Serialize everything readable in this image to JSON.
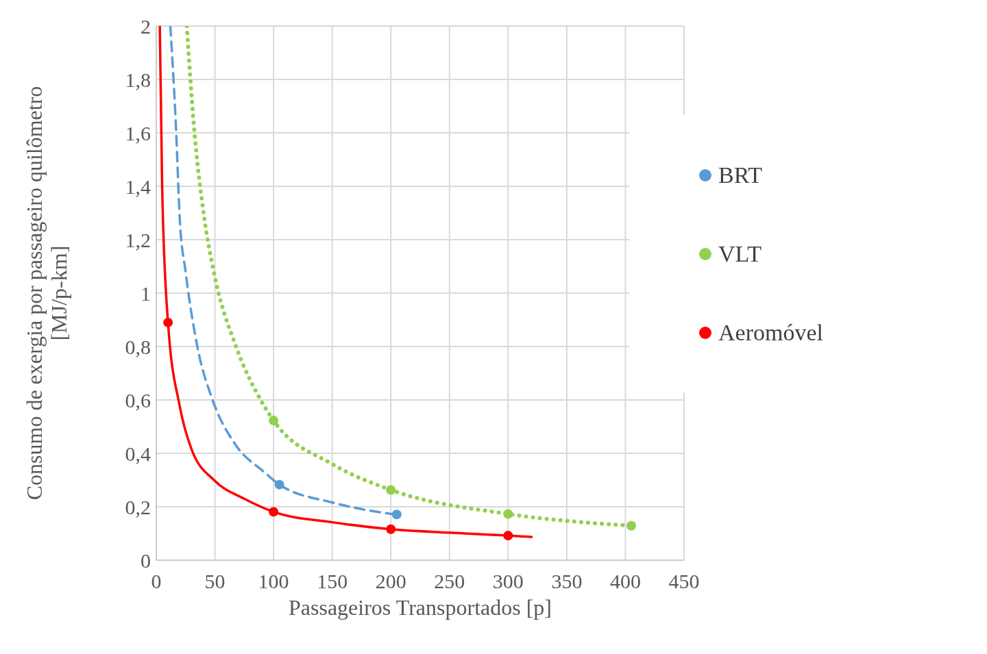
{
  "chart_data": {
    "type": "scatter",
    "xlabel": "Passageiros Transportados [p]",
    "ylabel": "Consumo de exergia por passageiro quilômetro\n[MJ/p-km]",
    "xlim": [
      0,
      450
    ],
    "xticks": [
      0,
      50,
      100,
      150,
      200,
      250,
      300,
      350,
      400,
      450
    ],
    "ylim": [
      0,
      2
    ],
    "yticks": [
      0,
      {
        "value": 0.2,
        "label": "0,2"
      },
      {
        "value": 0.4,
        "label": "0,4"
      },
      {
        "value": 0.6,
        "label": "0,6"
      },
      {
        "value": 0.8,
        "label": "0,8"
      },
      1,
      {
        "value": 1.2,
        "label": "1,2"
      },
      {
        "value": 1.4,
        "label": "1,4"
      },
      {
        "value": 1.6,
        "label": "1,6"
      },
      {
        "value": 1.8,
        "label": "1,8"
      },
      2
    ],
    "grid": true,
    "legend": "top right",
    "marker": "circle",
    "series": [
      {
        "type": "line",
        "color": "#5b9bd5",
        "line_style": "dashed",
        "marker": "none",
        "x": [
          12,
          17,
          20,
          25,
          35,
          48,
          67,
          92,
          105,
          150,
          205
        ],
        "values": [
          2,
          1.6,
          1.28,
          1.08,
          0.8,
          0.6,
          0.436,
          0.33,
          0.283,
          0.216,
          0.17
        ]
      },
      {
        "type": "line",
        "color": "#92d050",
        "line_style": "dotted",
        "marker": "none",
        "x": [
          26,
          32,
          41,
          49,
          68,
          89,
          100,
          150,
          200,
          300,
          405
        ],
        "values": [
          2,
          1.63,
          1.28,
          1.08,
          0.8,
          0.6,
          0.523,
          0.36,
          0.263,
          0.173,
          0.129
        ]
      },
      {
        "type": "line",
        "color": "#ff0000",
        "line_style": "solid",
        "marker": "none",
        "x": [
          3,
          5,
          10,
          20,
          30,
          50,
          75,
          100,
          150,
          200,
          250,
          300,
          320
        ],
        "values": [
          2,
          1.4,
          0.89,
          0.577,
          0.416,
          0.297,
          0.23,
          0.181,
          0.142,
          0.116,
          0.103,
          0.092,
          0.087
        ]
      },
      {
        "name": "BRT",
        "color": "#5b9bd5",
        "x": [
          105,
          205
        ],
        "values": [
          0.283,
          0.171
        ]
      },
      {
        "name": "VLT",
        "color": "#92d050",
        "x": [
          100,
          200,
          300,
          405
        ],
        "values": [
          0.523,
          0.263,
          0.173,
          0.129
        ]
      },
      {
        "name": "Aeromóvel",
        "color": "#ff0000",
        "x": [
          10,
          100,
          200,
          300
        ],
        "values": [
          0.89,
          0.181,
          0.116,
          0.092
        ]
      }
    ]
  }
}
